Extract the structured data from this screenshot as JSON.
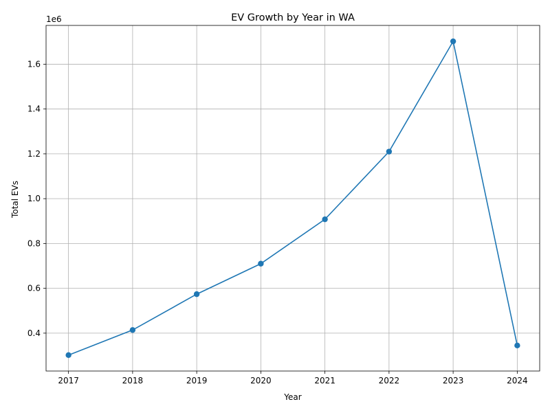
{
  "chart_data": {
    "type": "line",
    "title": "EV Growth by Year in WA",
    "xlabel": "Year",
    "ylabel": "Total EVs",
    "y_offset_text": "1e6",
    "x": [
      2017,
      2018,
      2019,
      2020,
      2021,
      2022,
      2023,
      2024
    ],
    "x_ticks": [
      "2017",
      "2018",
      "2019",
      "2020",
      "2021",
      "2022",
      "2023",
      "2024"
    ],
    "y_ticks": [
      "0.4",
      "0.6",
      "0.8",
      "1.0",
      "1.2",
      "1.4",
      "1.6"
    ],
    "y_tick_values": [
      0.4,
      0.6,
      0.8,
      1.0,
      1.2,
      1.4,
      1.6
    ],
    "series": [
      {
        "values": [
          0.302,
          0.414,
          0.574,
          0.71,
          0.908,
          1.21,
          1.702,
          0.345
        ],
        "color": "#1f77b4",
        "marker": "circle"
      }
    ],
    "xlim": [
      2016.65,
      2024.35
    ],
    "ylim": [
      0.231,
      1.773
    ],
    "grid": true
  }
}
